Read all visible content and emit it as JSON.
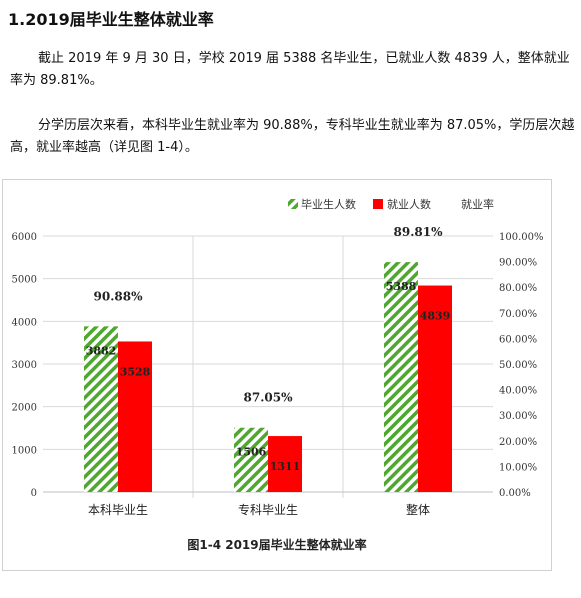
{
  "heading": "1.2019届毕业生整体就业率",
  "paragraphs": [
    "截止 2019 年 9 月 30 日，学校 2019 届 5388 名毕业生，已就业人数 4839 人，整体就业率为 89.81%。",
    "分学历层次来看，本科毕业生就业率为 90.88%，专科毕业生就业率为 87.05%，学历层次越高，就业率越高（详见图 1-4）。"
  ],
  "chart_data": {
    "type": "bar",
    "categories": [
      "本科毕业生",
      "专科毕业生",
      "整体"
    ],
    "series": [
      {
        "name": "毕业生人数",
        "values": [
          3882,
          1506,
          5388
        ],
        "color": "#4ea72e",
        "pattern": "hatched"
      },
      {
        "name": "就业人数",
        "values": [
          3528,
          1311,
          4839
        ],
        "color": "#ff0000"
      }
    ],
    "rate_series": {
      "name": "就业率",
      "labels": [
        "90.88%",
        "87.05%",
        "89.81%"
      ]
    },
    "left_axis": {
      "ylim": [
        0,
        6000
      ],
      "ticks": [
        "0",
        "1000",
        "2000",
        "3000",
        "4000",
        "5000",
        "6000"
      ]
    },
    "right_axis": {
      "ylim": [
        0,
        100
      ],
      "ticks": [
        "0.00%",
        "10.00%",
        "20.00%",
        "30.00%",
        "40.00%",
        "50.00%",
        "60.00%",
        "70.00%",
        "80.00%",
        "90.00%",
        "100.00%"
      ]
    },
    "legend_position": "top-right",
    "grid": true,
    "caption": "图1-4   2019届毕业生整体就业率"
  }
}
